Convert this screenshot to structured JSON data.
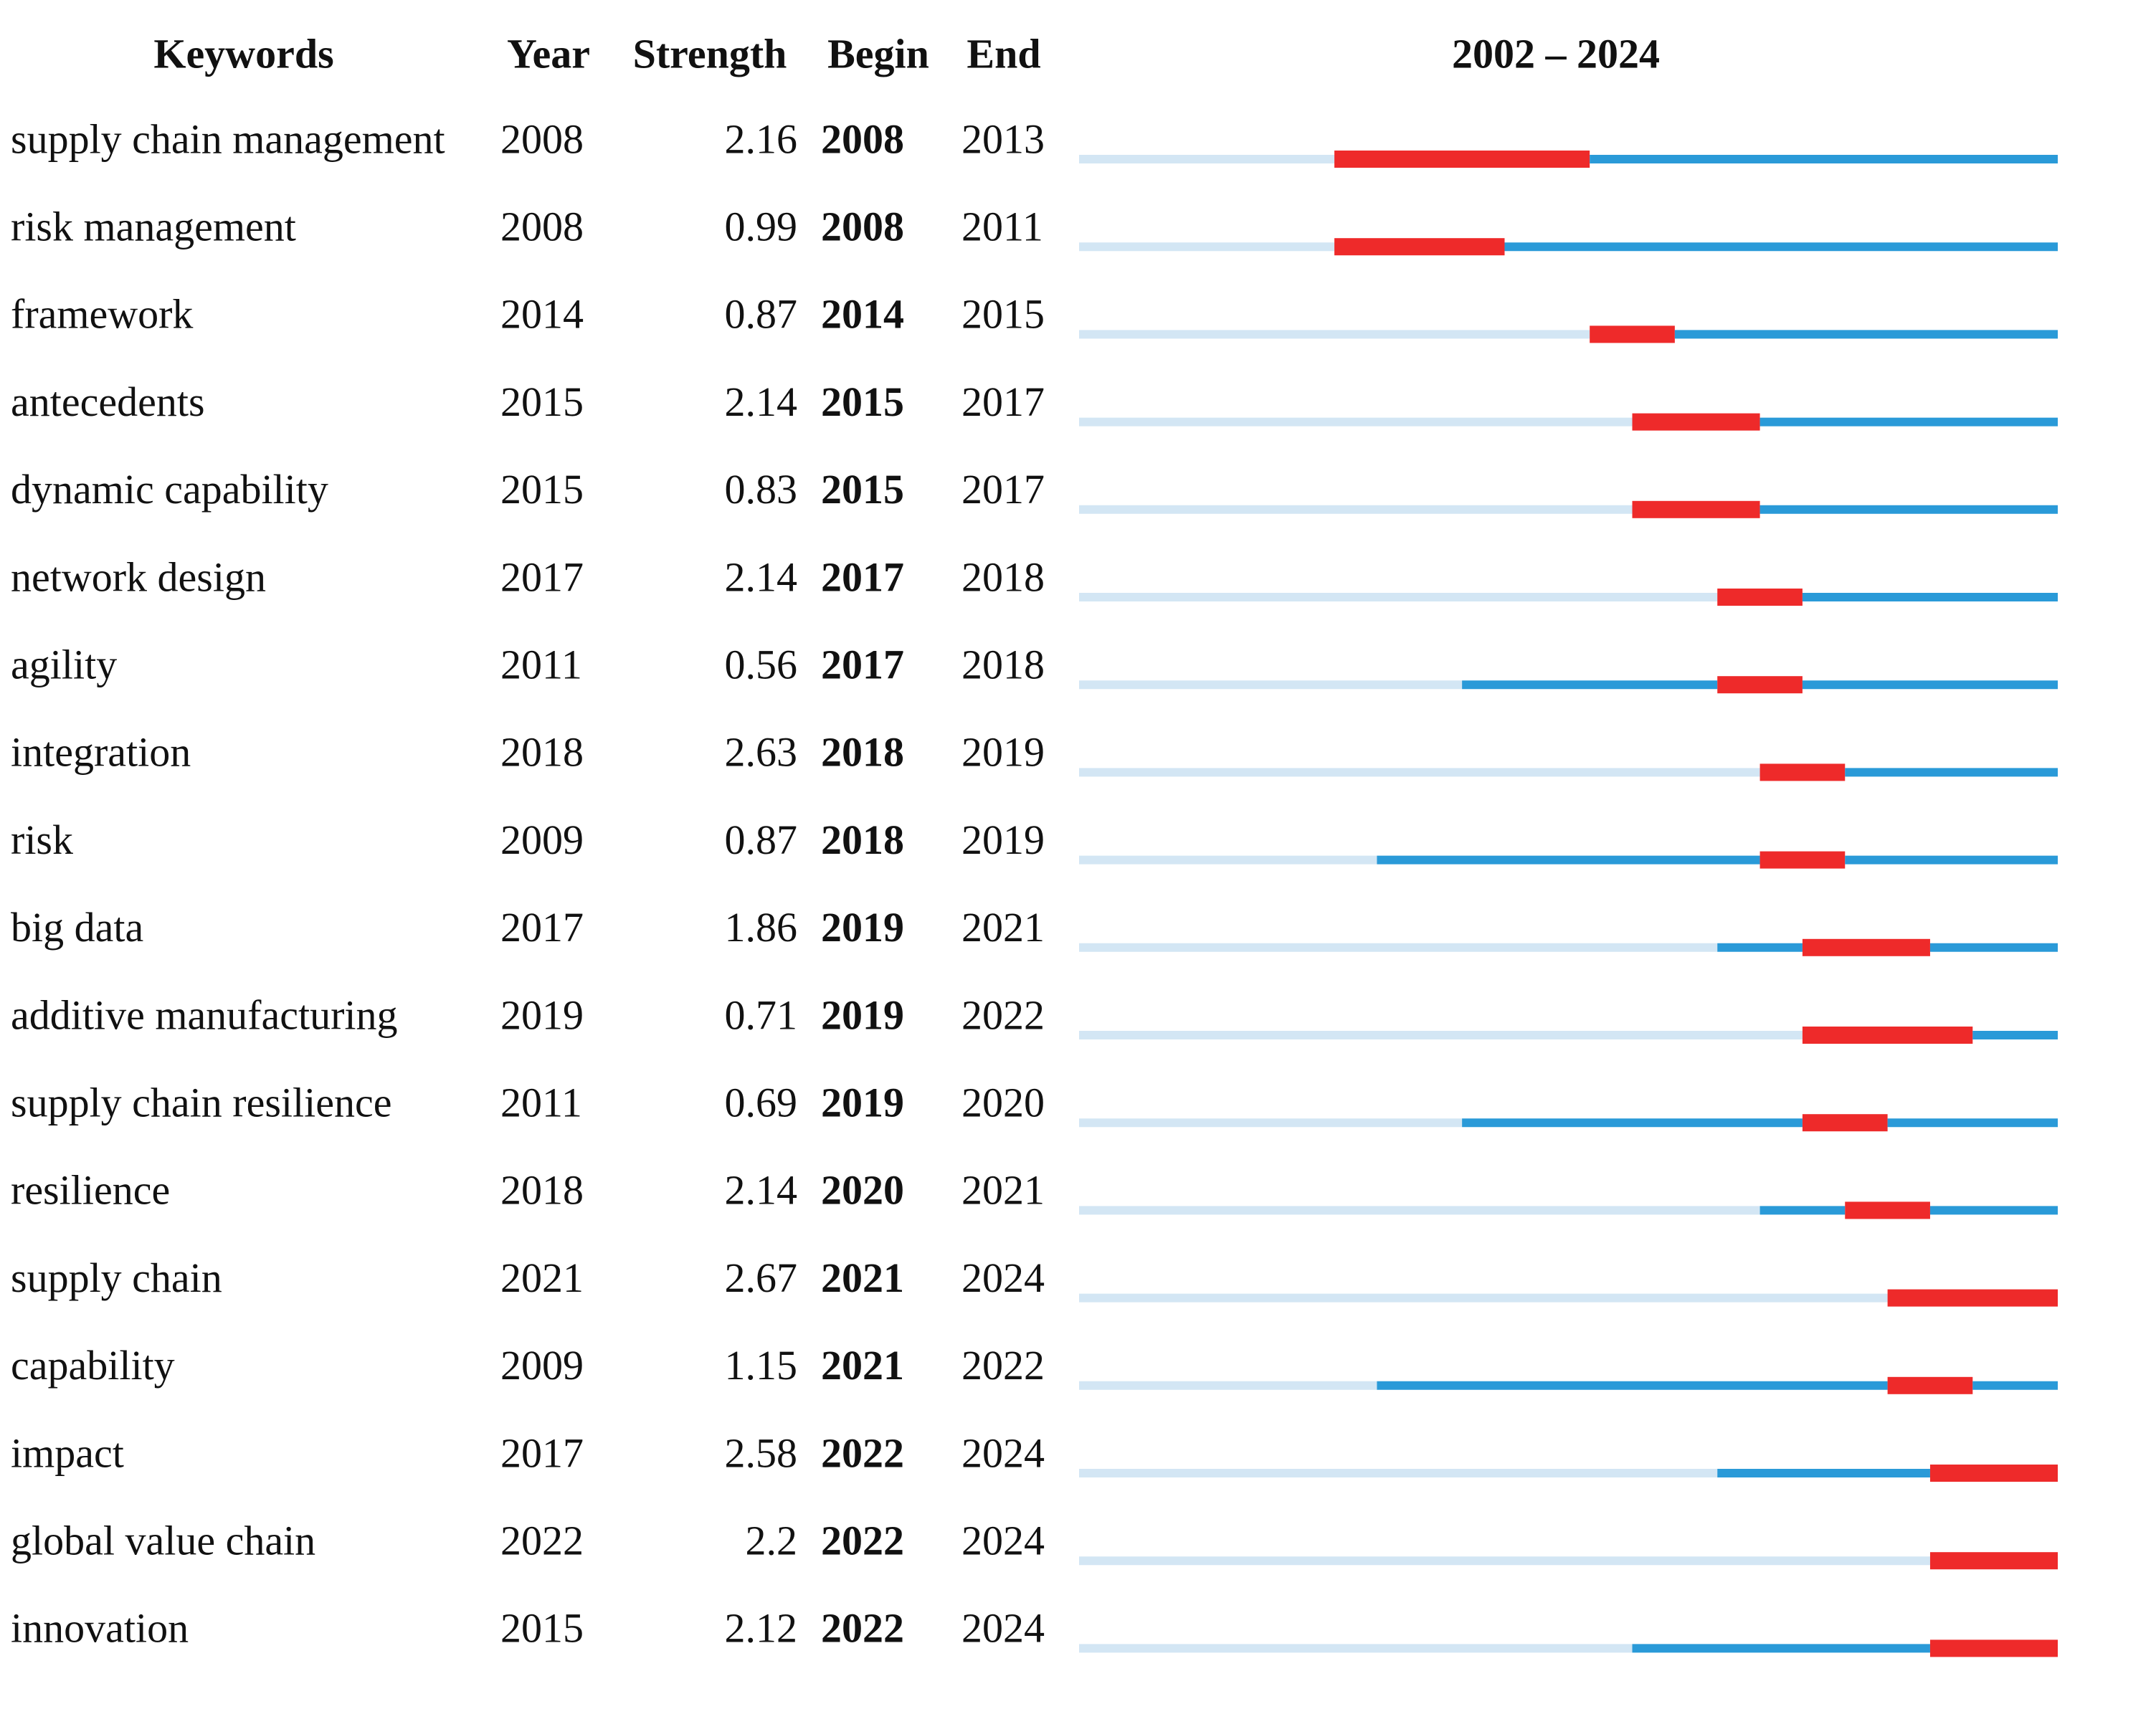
{
  "chart_data": {
    "type": "burst",
    "title": "2002 – 2024",
    "xlim": [
      2002,
      2024
    ],
    "columns": [
      "Keywords",
      "Year",
      "Strength",
      "Begin",
      "End"
    ],
    "colors": {
      "faint": "#d3e6f4",
      "active": "#2a9ad8",
      "burst": "#ee2a2a"
    },
    "rows": [
      {
        "keyword": "supply chain management",
        "year": 2008,
        "strength": 2.16,
        "begin": 2008,
        "end": 2013
      },
      {
        "keyword": "risk management",
        "year": 2008,
        "strength": 0.99,
        "begin": 2008,
        "end": 2011
      },
      {
        "keyword": "framework",
        "year": 2014,
        "strength": 0.87,
        "begin": 2014,
        "end": 2015
      },
      {
        "keyword": "antecedents",
        "year": 2015,
        "strength": 2.14,
        "begin": 2015,
        "end": 2017
      },
      {
        "keyword": "dynamic capability",
        "year": 2015,
        "strength": 0.83,
        "begin": 2015,
        "end": 2017
      },
      {
        "keyword": "network design",
        "year": 2017,
        "strength": 2.14,
        "begin": 2017,
        "end": 2018
      },
      {
        "keyword": "agility",
        "year": 2011,
        "strength": 0.56,
        "begin": 2017,
        "end": 2018
      },
      {
        "keyword": "integration",
        "year": 2018,
        "strength": 2.63,
        "begin": 2018,
        "end": 2019
      },
      {
        "keyword": "risk",
        "year": 2009,
        "strength": 0.87,
        "begin": 2018,
        "end": 2019
      },
      {
        "keyword": "big data",
        "year": 2017,
        "strength": 1.86,
        "begin": 2019,
        "end": 2021
      },
      {
        "keyword": "additive manufacturing",
        "year": 2019,
        "strength": 0.71,
        "begin": 2019,
        "end": 2022
      },
      {
        "keyword": "supply chain resilience",
        "year": 2011,
        "strength": 0.69,
        "begin": 2019,
        "end": 2020
      },
      {
        "keyword": "resilience",
        "year": 2018,
        "strength": 2.14,
        "begin": 2020,
        "end": 2021
      },
      {
        "keyword": "supply chain",
        "year": 2021,
        "strength": 2.67,
        "begin": 2021,
        "end": 2024
      },
      {
        "keyword": "capability",
        "year": 2009,
        "strength": 1.15,
        "begin": 2021,
        "end": 2022
      },
      {
        "keyword": "impact",
        "year": 2017,
        "strength": 2.58,
        "begin": 2022,
        "end": 2024
      },
      {
        "keyword": "global value chain",
        "year": 2022,
        "strength": 2.2,
        "begin": 2022,
        "end": 2024
      },
      {
        "keyword": "innovation",
        "year": 2015,
        "strength": 2.12,
        "begin": 2022,
        "end": 2024
      }
    ]
  }
}
